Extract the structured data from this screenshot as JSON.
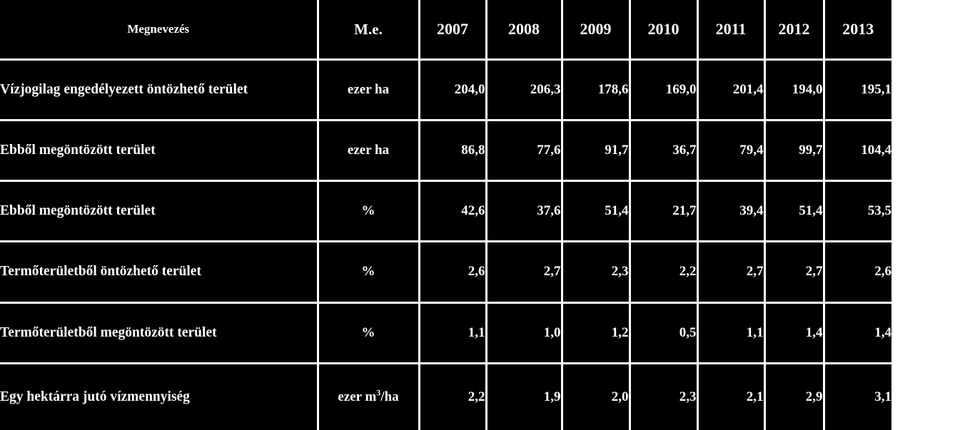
{
  "table": {
    "header": {
      "name": "Megnevezés",
      "unit": "M.e.",
      "years": [
        "2007",
        "2008",
        "2009",
        "2010",
        "2011",
        "2012",
        "2013"
      ]
    },
    "rows": [
      {
        "name": "Vízjogilag  engedélyezett öntözhető terület",
        "unit": "ezer ha",
        "unit_sup": "",
        "unit_after": "",
        "values": [
          "204,0",
          "206,3",
          "178,6",
          "169,0",
          "201,4",
          "194,0",
          "195,1"
        ]
      },
      {
        "name": "Ebből megöntözött terület",
        "unit": "ezer ha",
        "unit_sup": "",
        "unit_after": "",
        "values": [
          "86,8",
          "77,6",
          "91,7",
          "36,7",
          "79,4",
          "99,7",
          "104,4"
        ]
      },
      {
        "name": "Ebből megöntözött terület",
        "unit": "%",
        "unit_sup": "",
        "unit_after": "",
        "values": [
          "42,6",
          "37,6",
          "51,4",
          "21,7",
          "39,4",
          "51,4",
          "53,5"
        ]
      },
      {
        "name": "Termőterületből öntözhető terület",
        "unit": "%",
        "unit_sup": "",
        "unit_after": "",
        "values": [
          "2,6",
          "2,7",
          "2,3",
          "2,2",
          "2,7",
          "2,7",
          "2,6"
        ]
      },
      {
        "name": "Termőterületből megöntözött terület",
        "unit": "%",
        "unit_sup": "",
        "unit_after": "",
        "values": [
          "1,1",
          "1,0",
          "1,2",
          "0,5",
          "1,1",
          "1,4",
          "1,4"
        ]
      },
      {
        "name": "Egy hektárra jutó vízmennyiség",
        "unit": "ezer m",
        "unit_sup": "3",
        "unit_after": "/ha",
        "values": [
          "2,2",
          "1,9",
          "2,0",
          "2,3",
          "2,1",
          "2,9",
          "3,1"
        ]
      }
    ]
  },
  "colors": {
    "background": "#000000",
    "text": "#ffffff",
    "border": "#ffffff",
    "page": "#ffffff"
  }
}
